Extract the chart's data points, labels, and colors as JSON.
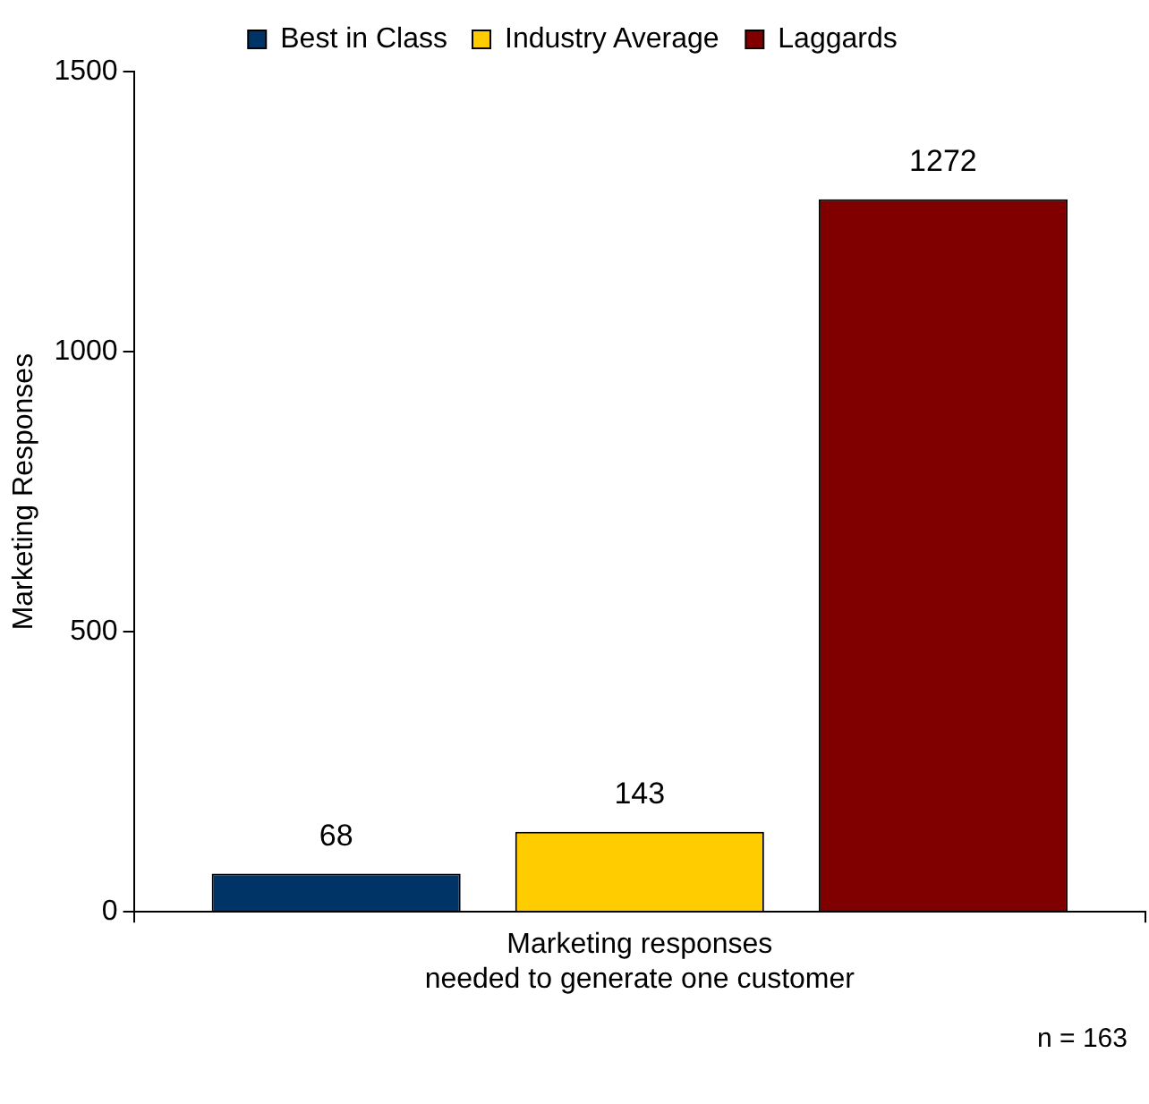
{
  "chart_data": {
    "type": "bar",
    "categories": [
      "Marketing responses\nneeded to generate one customer"
    ],
    "series": [
      {
        "name": "Best in Class",
        "color": "#003366",
        "values": [
          68
        ]
      },
      {
        "name": "Industry Average",
        "color": "#ffcc00",
        "values": [
          143
        ]
      },
      {
        "name": "Laggards",
        "color": "#800000",
        "values": [
          1272
        ]
      }
    ],
    "ylabel": "Marketing Responses",
    "ylim": [
      0,
      1500
    ],
    "yticks": [
      0,
      500,
      1000,
      1500
    ],
    "data_labels": true,
    "legend": "top",
    "grid": false,
    "annotations": [
      "n = 163"
    ]
  }
}
